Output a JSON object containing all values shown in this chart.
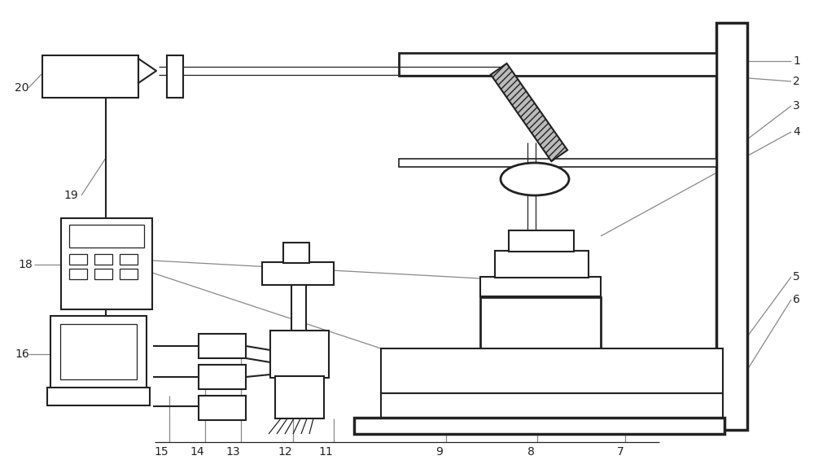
{
  "bg_color": "#ffffff",
  "lc": "#222222",
  "gc": "#888888",
  "lw": 1.5,
  "tlw": 0.9,
  "fs": 10,
  "fig_w": 10.0,
  "fig_h": 5.65,
  "dpi": 100
}
